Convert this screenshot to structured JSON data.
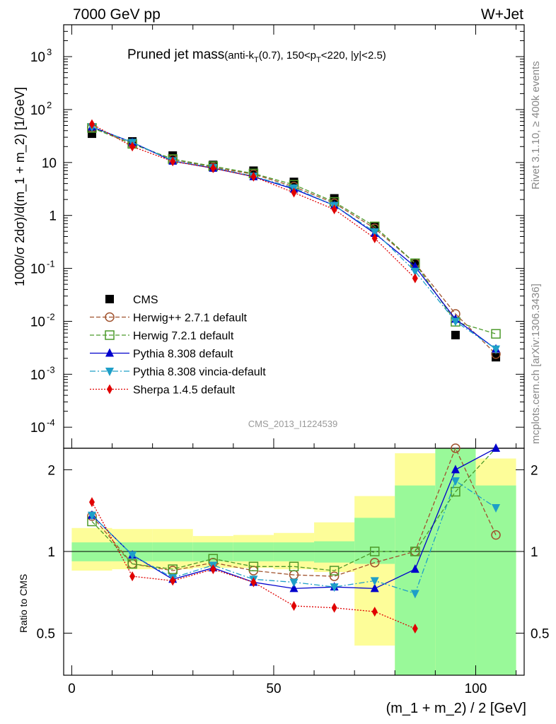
{
  "header": {
    "beam": "7000 GeV pp",
    "process": "W+Jet"
  },
  "title": {
    "main": "Pruned jet mass",
    "sub": "(anti-k",
    "sub_subscript": "T",
    "sub_rest": "(0.7), 150<p",
    "sub_subscript2": "T",
    "sub_end": "<220, |y|<2.5)"
  },
  "side_labels": {
    "rivet": "Rivet 3.1.10, ≥ 400k events",
    "mcplots": "mcplots.cern.ch [arXiv:1306.3436]"
  },
  "watermark": "CMS_2013_I1224539",
  "colors": {
    "cms": "#000000",
    "herwigpp": "#a0522d",
    "herwig7": "#4c9a2a",
    "pythia": "#0000cc",
    "vincia": "#1e9fc8",
    "sherpa": "#e00000",
    "band_inner": "#99f999",
    "band_outer": "#fdfd99"
  },
  "chart_data": [
    {
      "type": "scatter",
      "title": "Pruned jet mass (anti-kT(0.7), 150<pT<220, |y|<2.5)",
      "ylabel": "1000/σ 2dσ)/d(m_1 + m_2) [1/GeV]",
      "xlabel": "",
      "yscale": "log",
      "xlim": [
        -2,
        112
      ],
      "ylim": [
        4e-05,
        4000
      ],
      "y_ticks": [
        {
          "value": 0.0001,
          "label": "10",
          "exp": "-4"
        },
        {
          "value": 0.001,
          "label": "10",
          "exp": "-3"
        },
        {
          "value": 0.01,
          "label": "10",
          "exp": "-2"
        },
        {
          "value": 0.1,
          "label": "10",
          "exp": "-1"
        },
        {
          "value": 1,
          "label": "1",
          "exp": ""
        },
        {
          "value": 10,
          "label": "10",
          "exp": ""
        },
        {
          "value": 100,
          "label": "10",
          "exp": "2"
        },
        {
          "value": 1000,
          "label": "10",
          "exp": "3"
        }
      ],
      "x": [
        5,
        15,
        25,
        35,
        45,
        55,
        65,
        75,
        85,
        95,
        105
      ],
      "series": [
        {
          "name": "CMS",
          "key": "cms",
          "style": "square-filled",
          "dash": "",
          "values": [
            35,
            25,
            13.5,
            9,
            7,
            4.3,
            2.1,
            0.62,
            0.125,
            0.0055,
            0.0021
          ]
        },
        {
          "name": "Herwig++ 2.7.1 default",
          "key": "herwigpp",
          "style": "circle-open",
          "dash": "6,3",
          "values": [
            46,
            22.5,
            11.5,
            8.1,
            6.0,
            3.5,
            1.7,
            0.57,
            0.125,
            0.0138,
            0.0024
          ]
        },
        {
          "name": "Herwig 7.2.1 default",
          "key": "herwig7",
          "style": "square-open",
          "dash": "6,3",
          "values": [
            45,
            22.5,
            11.6,
            8.5,
            6.2,
            3.8,
            1.8,
            0.62,
            0.125,
            0.0098,
            0.0058
          ]
        },
        {
          "name": "Pythia 8.308 default",
          "key": "pythia",
          "style": "triangle-up",
          "dash": "",
          "values": [
            47,
            24,
            10.6,
            7.8,
            5.4,
            3.15,
            1.55,
            0.46,
            0.108,
            0.011,
            0.003
          ]
        },
        {
          "name": "Pythia 8.308 vincia-default",
          "key": "vincia",
          "style": "triangle-down",
          "dash": "8,3,2,3",
          "values": [
            47,
            24,
            10.8,
            8.0,
            5.5,
            3.3,
            1.55,
            0.49,
            0.088,
            0.01,
            0.003
          ]
        },
        {
          "name": "Sherpa 1.4.5 default",
          "key": "sherpa",
          "style": "diamond",
          "dash": "2,2",
          "values": [
            53,
            20,
            10.5,
            7.8,
            5.4,
            2.7,
            1.3,
            0.37,
            0.065,
            null,
            null
          ]
        }
      ],
      "legend_position": "lower-left"
    },
    {
      "type": "scatter",
      "xlabel": "(m_1 + m_2) / 2 [GeV]",
      "ylabel": "Ratio to CMS",
      "yscale": "log",
      "xlim": [
        -2,
        112
      ],
      "ylim": [
        0.35,
        2.4
      ],
      "y_ticks": [
        {
          "value": 0.5,
          "label": "0.5"
        },
        {
          "value": 1,
          "label": "1"
        },
        {
          "value": 2,
          "label": "2"
        }
      ],
      "x_ticks": [
        {
          "value": 0,
          "label": "0"
        },
        {
          "value": 50,
          "label": "50"
        },
        {
          "value": 100,
          "label": "100"
        }
      ],
      "bands": [
        {
          "x": [
            0,
            10
          ],
          "inner": [
            0.92,
            1.08
          ],
          "outer": [
            0.85,
            1.22
          ]
        },
        {
          "x": [
            10,
            20
          ],
          "inner": [
            0.92,
            1.08
          ],
          "outer": [
            0.86,
            1.21
          ]
        },
        {
          "x": [
            20,
            30
          ],
          "inner": [
            0.92,
            1.08
          ],
          "outer": [
            0.86,
            1.21
          ]
        },
        {
          "x": [
            30,
            40
          ],
          "inner": [
            0.92,
            1.08
          ],
          "outer": [
            0.87,
            1.14
          ]
        },
        {
          "x": [
            40,
            50
          ],
          "inner": [
            0.92,
            1.08
          ],
          "outer": [
            0.87,
            1.15
          ]
        },
        {
          "x": [
            50,
            60
          ],
          "inner": [
            0.92,
            1.08
          ],
          "outer": [
            0.86,
            1.17
          ]
        },
        {
          "x": [
            60,
            70
          ],
          "inner": [
            0.91,
            1.09
          ],
          "outer": [
            0.84,
            1.28
          ]
        },
        {
          "x": [
            70,
            80
          ],
          "inner": [
            0.9,
            1.33
          ],
          "outer": [
            0.45,
            1.6
          ]
        },
        {
          "x": [
            80,
            90
          ],
          "inner": [
            0.35,
            1.75
          ],
          "outer": [
            0.35,
            2.3
          ]
        },
        {
          "x": [
            90,
            100
          ],
          "inner": [
            0.35,
            2.4
          ],
          "outer": [
            0.35,
            2.4
          ]
        },
        {
          "x": [
            100,
            110
          ],
          "inner": [
            0.35,
            1.75
          ],
          "outer": [
            0.35,
            2.2
          ]
        }
      ],
      "x": [
        5,
        15,
        25,
        35,
        45,
        55,
        65,
        75,
        85,
        95,
        105
      ],
      "series": [
        {
          "name": "Herwig++ 2.7.1 default",
          "key": "herwigpp",
          "style": "circle-open",
          "dash": "6,3",
          "values": [
            1.35,
            0.9,
            0.85,
            0.91,
            0.85,
            0.82,
            0.81,
            0.91,
            1.0,
            2.4,
            1.15
          ]
        },
        {
          "name": "Herwig 7.2.1 default",
          "key": "herwig7",
          "style": "square-open",
          "dash": "6,3",
          "values": [
            1.29,
            0.9,
            0.86,
            0.94,
            0.88,
            0.88,
            0.85,
            1.0,
            1.0,
            1.66,
            2.6
          ]
        },
        {
          "name": "Pythia 8.308 default",
          "key": "pythia",
          "style": "triangle-up",
          "dash": "",
          "values": [
            1.36,
            0.97,
            0.79,
            0.87,
            0.77,
            0.73,
            0.74,
            0.73,
            0.86,
            2.0,
            2.4
          ]
        },
        {
          "name": "Pythia 8.308 vincia-default",
          "key": "vincia",
          "style": "triangle-down",
          "dash": "8,3,2,3",
          "values": [
            1.36,
            0.97,
            0.8,
            0.89,
            0.79,
            0.77,
            0.74,
            0.78,
            0.7,
            1.82,
            1.45
          ]
        },
        {
          "name": "Sherpa 1.4.5 default",
          "key": "sherpa",
          "style": "diamond",
          "dash": "2,2",
          "values": [
            1.52,
            0.81,
            0.78,
            0.86,
            0.77,
            0.63,
            0.62,
            0.6,
            0.52,
            null,
            null
          ]
        }
      ]
    }
  ]
}
